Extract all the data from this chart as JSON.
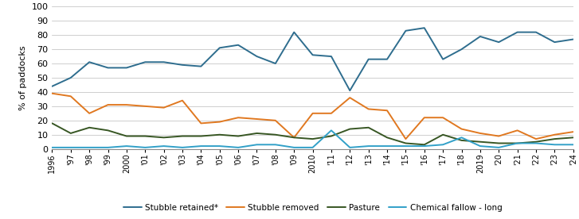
{
  "years": [
    1996,
    1997,
    1998,
    1999,
    2000,
    2001,
    2002,
    2003,
    2004,
    2005,
    2006,
    2007,
    2008,
    2009,
    2010,
    2011,
    2012,
    2013,
    2014,
    2015,
    2016,
    2017,
    2018,
    2019,
    2020,
    2021,
    2022,
    2023,
    2024
  ],
  "stubble_retained": [
    44,
    50,
    61,
    57,
    57,
    61,
    61,
    59,
    58,
    71,
    73,
    65,
    60,
    82,
    66,
    65,
    41,
    63,
    63,
    83,
    85,
    63,
    70,
    79,
    75,
    82,
    82,
    75,
    77
  ],
  "stubble_removed": [
    39,
    37,
    25,
    31,
    31,
    30,
    29,
    34,
    18,
    19,
    22,
    21,
    20,
    8,
    25,
    25,
    36,
    28,
    27,
    7,
    22,
    22,
    14,
    11,
    9,
    13,
    7,
    10,
    12
  ],
  "pasture": [
    18,
    11,
    15,
    13,
    9,
    9,
    8,
    9,
    9,
    10,
    9,
    11,
    10,
    8,
    7,
    9,
    14,
    15,
    8,
    4,
    3,
    10,
    6,
    5,
    4,
    4,
    5,
    7,
    8
  ],
  "chemical_fallow": [
    1,
    1,
    1,
    1,
    2,
    1,
    2,
    1,
    2,
    2,
    1,
    3,
    3,
    1,
    1,
    13,
    1,
    2,
    2,
    2,
    2,
    3,
    8,
    2,
    1,
    4,
    4,
    3,
    3
  ],
  "line_colors": {
    "stubble_retained": "#2e6d8e",
    "stubble_removed": "#e07820",
    "pasture": "#375623",
    "chemical_fallow": "#31a0c8"
  },
  "ylabel": "% of paddocks",
  "ylim": [
    0,
    100
  ],
  "yticks": [
    0,
    10,
    20,
    30,
    40,
    50,
    60,
    70,
    80,
    90,
    100
  ],
  "legend_labels": [
    "Stubble retained*",
    "Stubble removed",
    "Pasture",
    "Chemical fallow - long"
  ],
  "grid_color": "#bbbbbb",
  "background_color": "#ffffff",
  "line_width": 1.4
}
